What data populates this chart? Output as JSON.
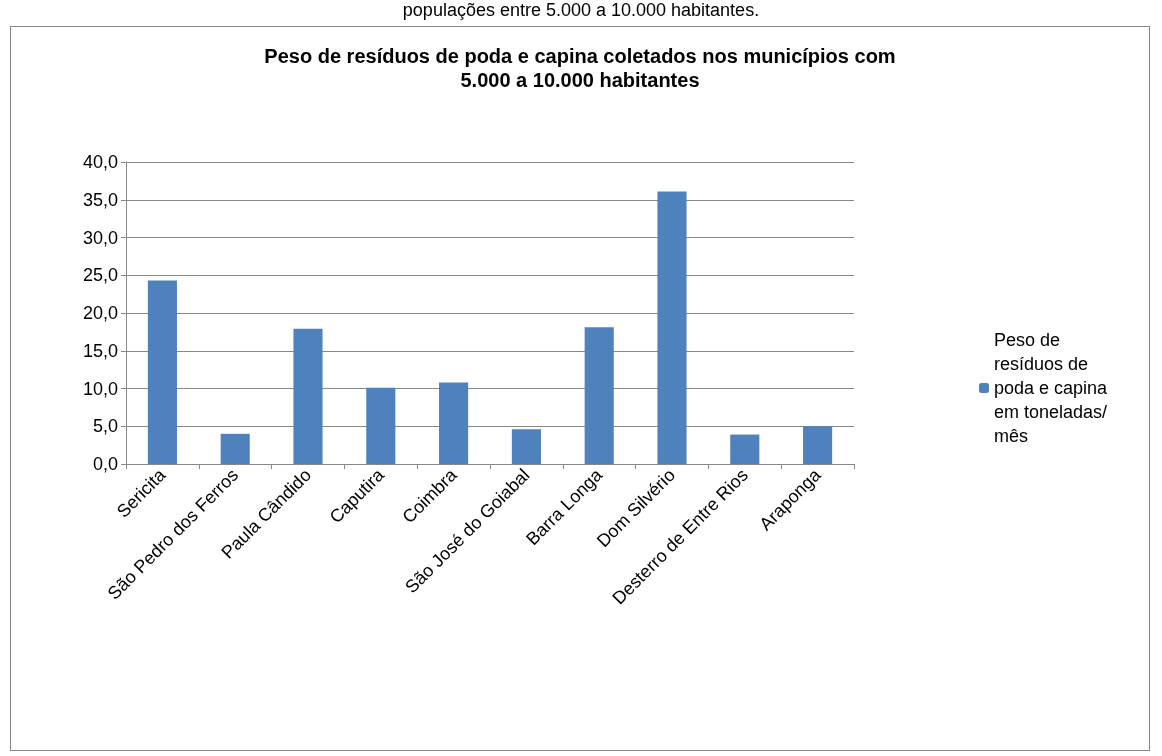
{
  "chart_data": {
    "type": "bar",
    "title": "Peso de resíduos de poda e capina coletados nos municípios com\n5.000 a 10.000 habitantes",
    "annotations": [
      "populações entre 5.000 a 10.000 habitantes."
    ],
    "categories": [
      "Sericita",
      "São Pedro dos Ferros",
      "Paula Cândido",
      "Caputira",
      "Coimbra",
      "São José do Goiabal",
      "Barra Longa",
      "Dom Silvério",
      "Desterro de Entre Rios",
      "Araponga"
    ],
    "series": [
      {
        "name": "Peso de resíduos de poda e capina em toneladas/mês",
        "color": "#4f81bd",
        "values": [
          24.3,
          4.0,
          17.9,
          10.1,
          10.8,
          4.6,
          18.1,
          36.1,
          3.9,
          5.0
        ]
      }
    ],
    "ylim": [
      0,
      40
    ],
    "yticks": [
      {
        "value": 0,
        "label": "0,0"
      },
      {
        "value": 5,
        "label": "5,0"
      },
      {
        "value": 10,
        "label": "10,0"
      },
      {
        "value": 15,
        "label": "15,0"
      },
      {
        "value": 20,
        "label": "20,0"
      },
      {
        "value": 25,
        "label": "25,0"
      },
      {
        "value": 30,
        "label": "30,0"
      },
      {
        "value": 35,
        "label": "35,0"
      },
      {
        "value": 40,
        "label": "40,0"
      }
    ],
    "grid": "y",
    "legend": "right"
  }
}
